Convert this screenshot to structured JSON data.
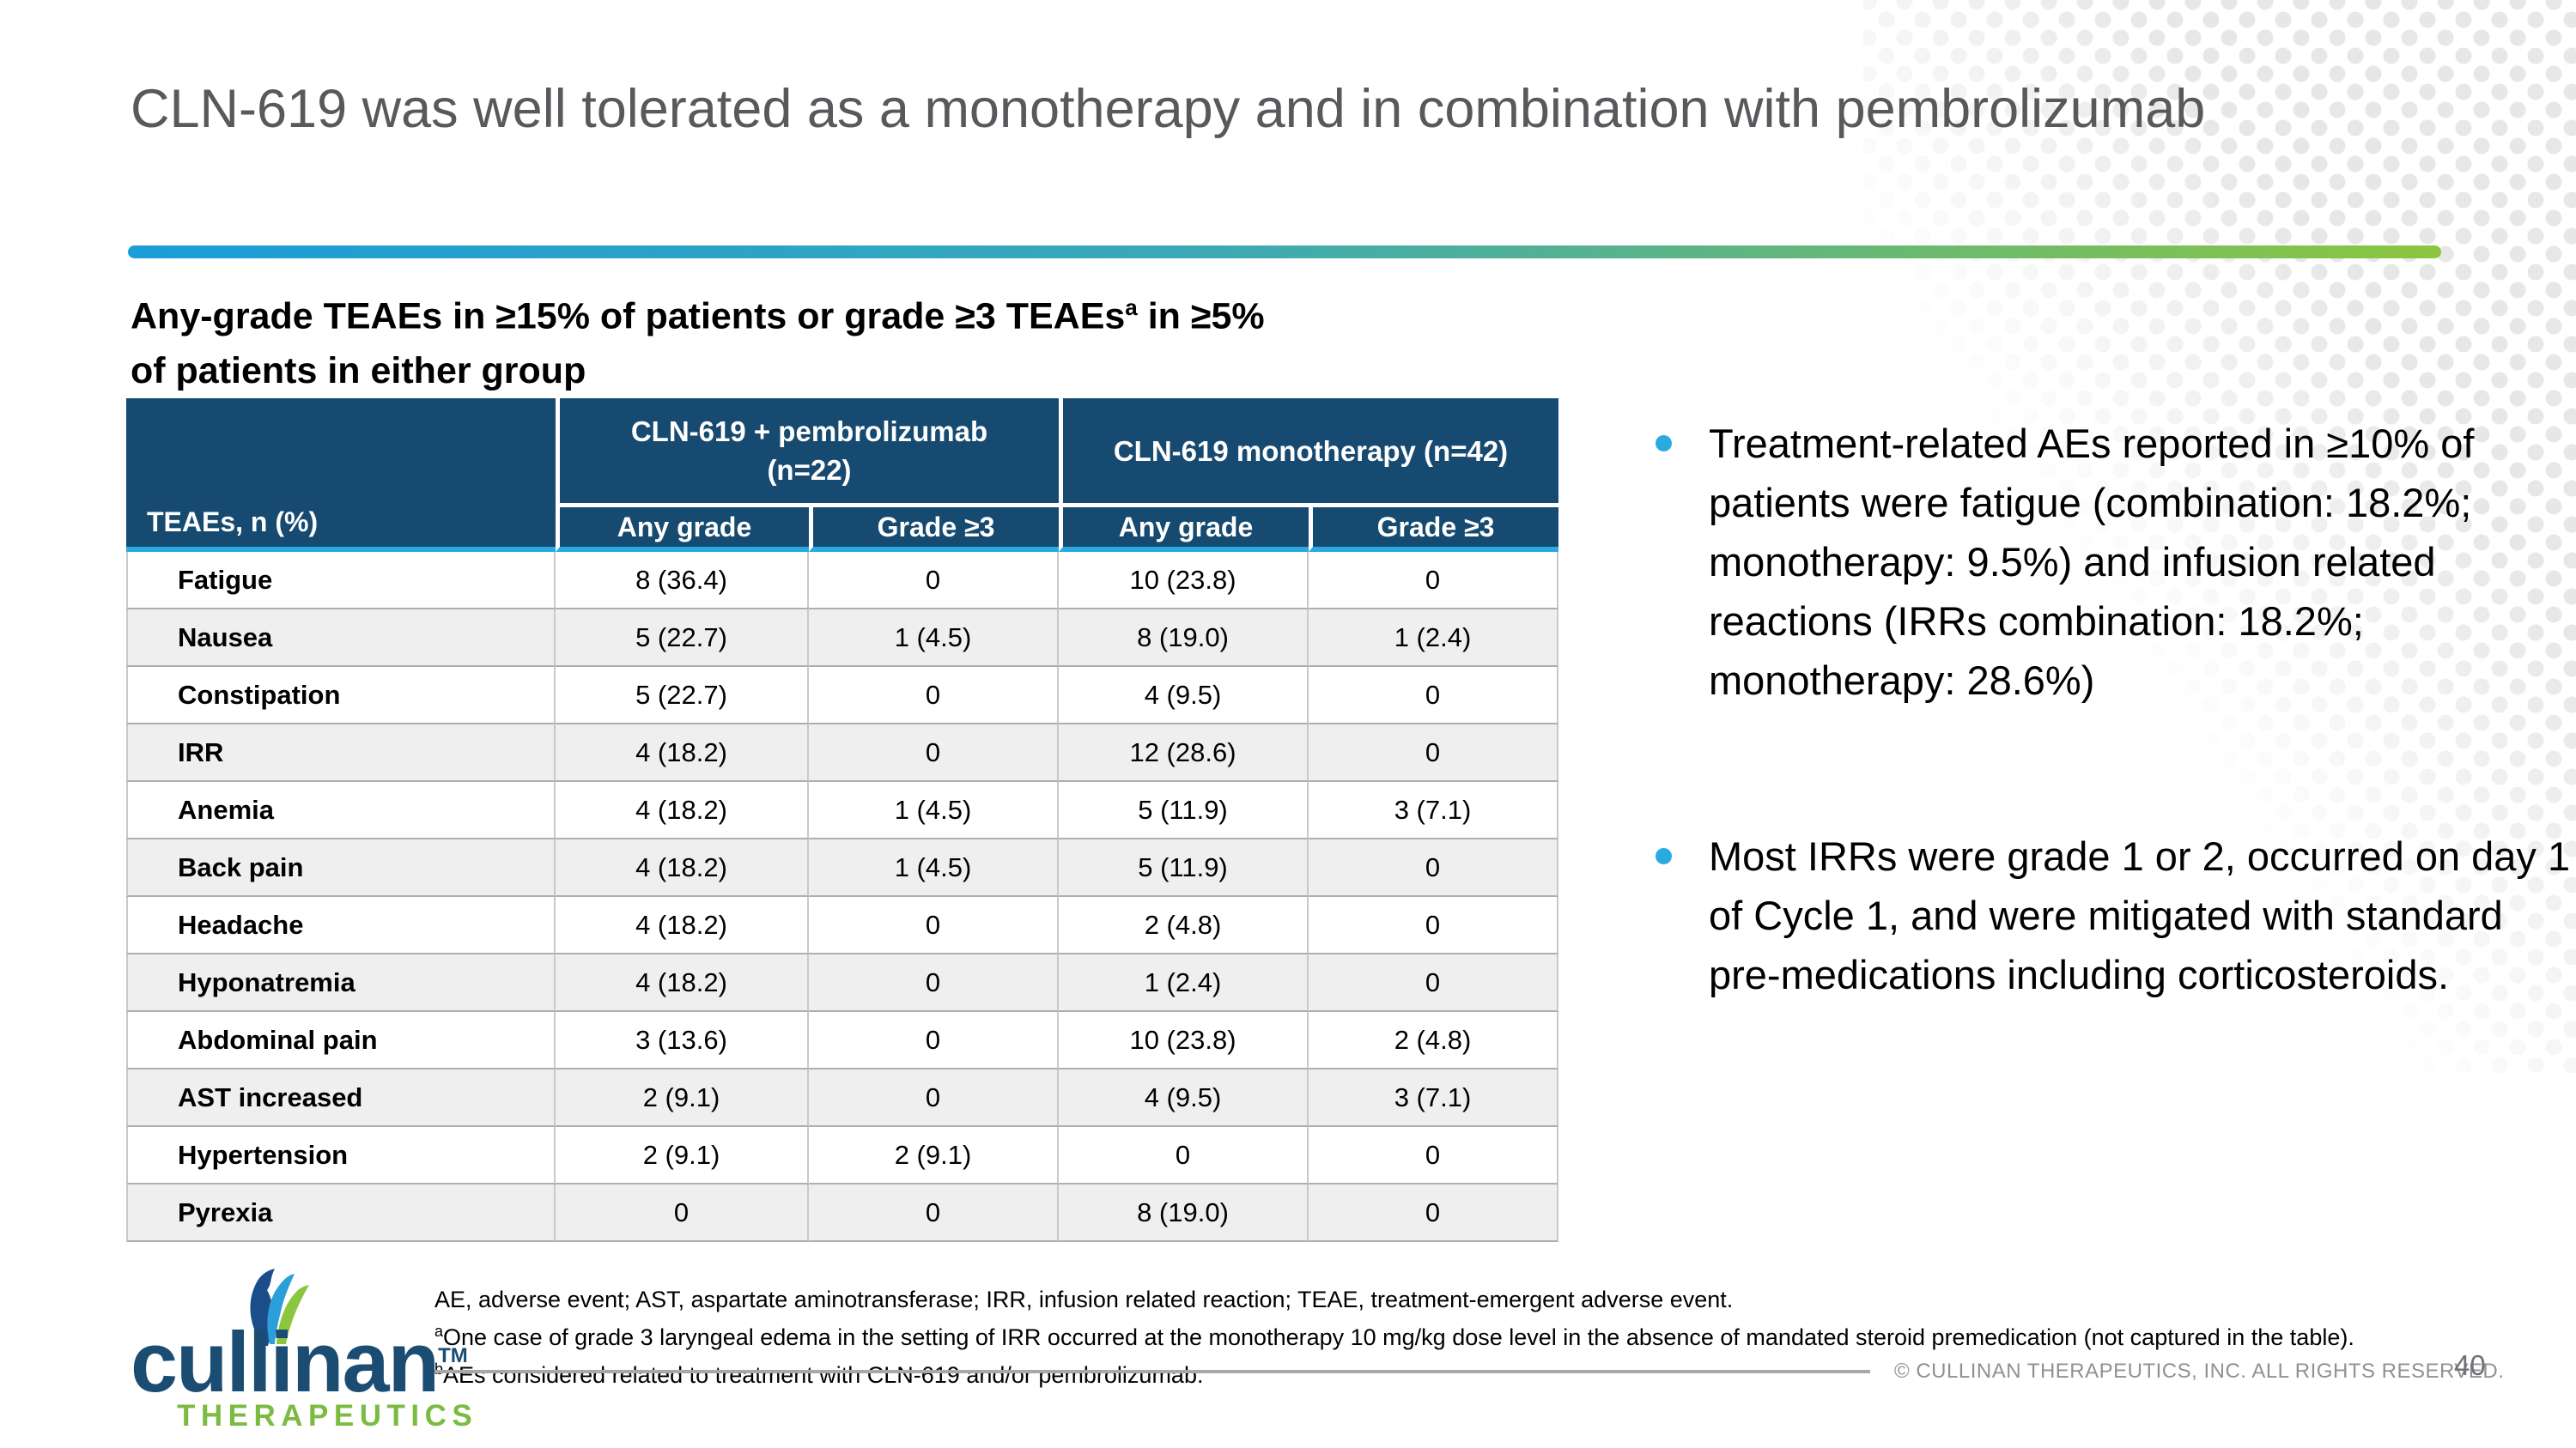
{
  "slide": {
    "title": "CLN-619 was well tolerated as a monotherapy and in combination with pembrolizumab",
    "page_number": "40",
    "copyright": "© CULLINAN THERAPEUTICS, INC. ALL RIGHTS RESERVED."
  },
  "subtitle": {
    "line1_pre": "Any-grade TEAEs in ≥15% of patients or grade ≥3 TEAEs",
    "line1_sup": "a",
    "line1_post": " in ≥5%",
    "line2": "of patients in either group"
  },
  "table": {
    "corner_header": "TEAEs, n (%)",
    "groups": [
      {
        "label_line1": "CLN-619 + pembrolizumab",
        "label_line2": "(n=22)"
      },
      {
        "label_line1": "CLN-619 monotherapy (n=42)",
        "label_line2": ""
      }
    ],
    "sub_headers": [
      "Any grade",
      "Grade ≥3",
      "Any grade",
      "Grade ≥3"
    ],
    "rows": [
      {
        "label": "Fatigue",
        "values": [
          "8 (36.4)",
          "0",
          "10 (23.8)",
          "0"
        ]
      },
      {
        "label": "Nausea",
        "values": [
          "5 (22.7)",
          "1 (4.5)",
          "8 (19.0)",
          "1 (2.4)"
        ]
      },
      {
        "label": "Constipation",
        "values": [
          "5 (22.7)",
          "0",
          "4 (9.5)",
          "0"
        ]
      },
      {
        "label": "IRR",
        "values": [
          "4 (18.2)",
          "0",
          "12 (28.6)",
          "0"
        ]
      },
      {
        "label": "Anemia",
        "values": [
          "4 (18.2)",
          "1 (4.5)",
          "5 (11.9)",
          "3 (7.1)"
        ]
      },
      {
        "label": "Back pain",
        "values": [
          "4 (18.2)",
          "1 (4.5)",
          "5 (11.9)",
          "0"
        ]
      },
      {
        "label": "Headache",
        "values": [
          "4 (18.2)",
          "0",
          "2 (4.8)",
          "0"
        ]
      },
      {
        "label": "Hyponatremia",
        "values": [
          "4 (18.2)",
          "0",
          "1 (2.4)",
          "0"
        ]
      },
      {
        "label": "Abdominal pain",
        "values": [
          "3 (13.6)",
          "0",
          "10 (23.8)",
          "2 (4.8)"
        ]
      },
      {
        "label": "AST increased",
        "values": [
          "2 (9.1)",
          "0",
          "4 (9.5)",
          "3 (7.1)"
        ]
      },
      {
        "label": "Hypertension",
        "values": [
          "2 (9.1)",
          "2 (9.1)",
          "0",
          "0"
        ]
      },
      {
        "label": "Pyrexia",
        "values": [
          "0",
          "0",
          "8 (19.0)",
          "0"
        ]
      }
    ]
  },
  "bullets": [
    "Treatment-related AEs reported in ≥10% of patients were fatigue (combination: 18.2%; monotherapy: 9.5%) and infusion related reactions (IRRs combination: 18.2%; monotherapy: 28.6%)",
    "Most IRRs were grade 1 or 2, occurred on day 1 of Cycle 1, and were mitigated with standard pre-medications including corticosteroids."
  ],
  "footnotes": {
    "line1": "AE, adverse event; AST, aspartate aminotransferase; IRR, infusion related reaction; TEAE, treatment-emergent adverse event.",
    "line2_sup": "a",
    "line2": "One case of grade 3 laryngeal edema in the setting of IRR occurred at the monotherapy 10 mg/kg dose level in the absence of mandated steroid premedication (not captured in the table).",
    "line3_sup": "b",
    "line3": "AEs considered related to treatment with CLN-619 and/or pembrolizumab."
  },
  "logo": {
    "wordmark": "cullinan",
    "tm": "TM",
    "tagline": "THERAPEUTICS"
  },
  "colors": {
    "header_navy": "#164a70",
    "accent_cyan": "#29abe2",
    "brand_green": "#8cc63f",
    "brand_navy": "#1b4d73",
    "gradient_left_blue": "#1b9dd9",
    "title_gray": "#58595c",
    "alt_row_gray": "#efefef"
  },
  "chart_data": {
    "type": "table",
    "title": "Any-grade TEAEs in ≥15% of patients or grade ≥3 TEAEs in ≥5% of patients in either group",
    "columns": [
      "TEAEs, n (%)",
      "CLN-619 + pembrolizumab (n=22) Any grade",
      "CLN-619 + pembrolizumab (n=22) Grade ≥3",
      "CLN-619 monotherapy (n=42) Any grade",
      "CLN-619 monotherapy (n=42) Grade ≥3"
    ],
    "rows": [
      [
        "Fatigue",
        "8 (36.4)",
        "0",
        "10 (23.8)",
        "0"
      ],
      [
        "Nausea",
        "5 (22.7)",
        "1 (4.5)",
        "8 (19.0)",
        "1 (2.4)"
      ],
      [
        "Constipation",
        "5 (22.7)",
        "0",
        "4 (9.5)",
        "0"
      ],
      [
        "IRR",
        "4 (18.2)",
        "0",
        "12 (28.6)",
        "0"
      ],
      [
        "Anemia",
        "4 (18.2)",
        "1 (4.5)",
        "5 (11.9)",
        "3 (7.1)"
      ],
      [
        "Back pain",
        "4 (18.2)",
        "1 (4.5)",
        "5 (11.9)",
        "0"
      ],
      [
        "Headache",
        "4 (18.2)",
        "0",
        "2 (4.8)",
        "0"
      ],
      [
        "Hyponatremia",
        "4 (18.2)",
        "0",
        "1 (2.4)",
        "0"
      ],
      [
        "Abdominal pain",
        "3 (13.6)",
        "0",
        "10 (23.8)",
        "2 (4.8)"
      ],
      [
        "AST increased",
        "2 (9.1)",
        "0",
        "4 (9.5)",
        "3 (7.1)"
      ],
      [
        "Hypertension",
        "2 (9.1)",
        "2 (9.1)",
        "0",
        "0"
      ],
      [
        "Pyrexia",
        "0",
        "0",
        "8 (19.0)",
        "0"
      ]
    ]
  }
}
